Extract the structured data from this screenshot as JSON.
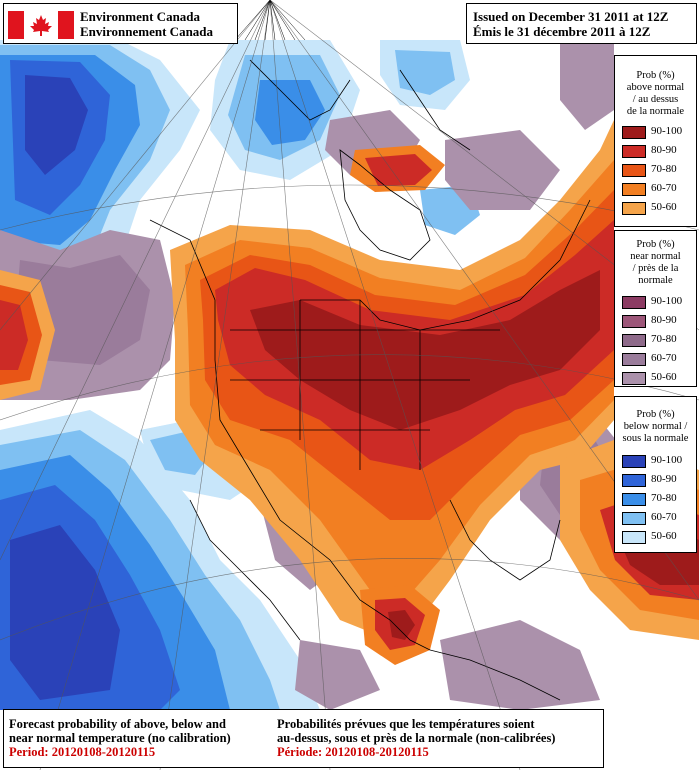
{
  "header": {
    "org_en": "Environment Canada",
    "org_fr": "Environnement Canada",
    "issued_en": "Issued on December 31 2011 at 12Z",
    "issued_fr": "Émis le 31 décembre 2011 à 12Z"
  },
  "legends": {
    "above": {
      "title": [
        "Prob (%)",
        "above normal",
        "/ au dessus",
        "de la normale"
      ],
      "items": [
        {
          "label": "90-100",
          "color": "#9e1b1b"
        },
        {
          "label": "80-90",
          "color": "#cc2b26"
        },
        {
          "label": "70-80",
          "color": "#e85516"
        },
        {
          "label": "60-70",
          "color": "#f27f22"
        },
        {
          "label": "50-60",
          "color": "#f5a44a"
        }
      ]
    },
    "near": {
      "title": [
        "Prob (%)",
        "near normal",
        "/ près de la",
        "normale"
      ],
      "items": [
        {
          "label": "90-100",
          "color": "#8c3b63"
        },
        {
          "label": "80-90",
          "color": "#9c5679"
        },
        {
          "label": "70-80",
          "color": "#8e6a8a"
        },
        {
          "label": "60-70",
          "color": "#9a7c9b"
        },
        {
          "label": "50-60",
          "color": "#ab91ab"
        }
      ]
    },
    "below": {
      "title": [
        "Prob (%)",
        "below normal /",
        "sous la normale"
      ],
      "items": [
        {
          "label": "90-100",
          "color": "#2a42b8"
        },
        {
          "label": "80-90",
          "color": "#2f64d8"
        },
        {
          "label": "70-80",
          "color": "#3a8ee8"
        },
        {
          "label": "60-70",
          "color": "#7fc0f2"
        },
        {
          "label": "50-60",
          "color": "#c8e6fa"
        }
      ]
    }
  },
  "footer": {
    "en_line1": "Forecast probability of above, below and",
    "en_line2": "near normal temperature (no calibration)",
    "en_period": "Period: 20120108-20120115",
    "fr_line1": "Probabilités prévues que les températures soient",
    "fr_line2": "au-dessus, sous et près de la normale (non-calibrées)",
    "fr_period": "Période: 20120108-20120115"
  }
}
